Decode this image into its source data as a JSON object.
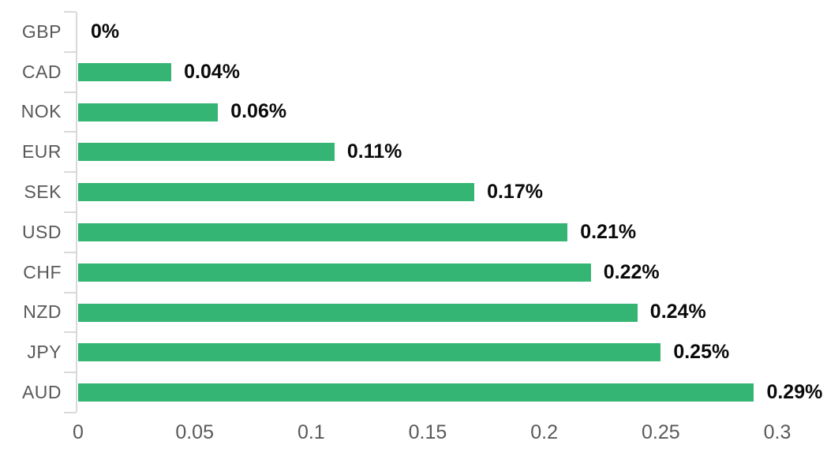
{
  "chart_data": {
    "type": "bar",
    "orientation": "horizontal",
    "title": "",
    "xlabel": "",
    "ylabel": "",
    "grid": false,
    "legend": false,
    "categories": [
      "GBP",
      "CAD",
      "NOK",
      "EUR",
      "SEK",
      "USD",
      "CHF",
      "NZD",
      "JPY",
      "AUD"
    ],
    "values": [
      0,
      0.04,
      0.06,
      0.11,
      0.17,
      0.21,
      0.22,
      0.24,
      0.25,
      0.29
    ],
    "value_labels": [
      "0%",
      "0.04%",
      "0.06%",
      "0.11%",
      "0.17%",
      "0.21%",
      "0.22%",
      "0.24%",
      "0.25%",
      "0.29%"
    ],
    "xlim": [
      0,
      0.3
    ],
    "x_tick_values": [
      0,
      0.05,
      0.1,
      0.15,
      0.2,
      0.25,
      0.3
    ],
    "x_ticks": [
      "0",
      "0.05",
      "0.1",
      "0.15",
      "0.2",
      "0.25",
      "0.3"
    ],
    "colors": {
      "background": "#ffffff",
      "bar": "#35b573",
      "category_label": "#595959",
      "tick_label": "#595959",
      "value_label": "#0a0a0a",
      "axis_line": "#d9d9d9"
    }
  }
}
